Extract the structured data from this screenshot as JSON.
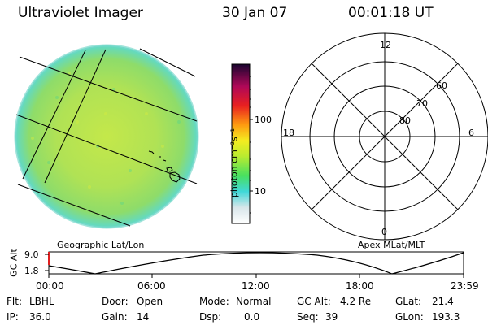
{
  "header": {
    "instrument": "Ultraviolet Imager",
    "date": "30 Jan 07",
    "time": "00:01:18 UT"
  },
  "colorbar": {
    "unit_label": "photon cm⁻²s⁻¹",
    "ticks": [
      "100",
      "10"
    ]
  },
  "geographic_label": "Geographic Lat/Lon",
  "polar": {
    "label": "Apex MLat/MLT",
    "mlt_labels": {
      "top": "12",
      "left": "18",
      "right": "6",
      "bottom": "0"
    },
    "lat_labels": [
      "60",
      "70",
      "80"
    ]
  },
  "altitude_plot": {
    "ylabel": "GC Alt",
    "yticks": [
      "9.0",
      "1.8"
    ],
    "xticks": [
      "00:00",
      "06:00",
      "12:00",
      "18:00",
      "23:59"
    ]
  },
  "status": {
    "flt_label": "Flt:",
    "flt_value": "LBHL",
    "ip_label": "IP:",
    "ip_value": "36.0",
    "door_label": "Door:",
    "door_value": "Open",
    "gain_label": "Gain:",
    "gain_value": "14",
    "mode_label": "Mode:",
    "mode_value": "Normal",
    "dsp_label": "Dsp:",
    "dsp_value": "0.0",
    "gcalt_label": "GC Alt:",
    "gcalt_value": "4.2 Re",
    "seq_label": "Seq:",
    "seq_value": "39",
    "glat_label": "GLat:",
    "glat_value": "21.4",
    "glon_label": "GLon:",
    "glon_value": "193.3"
  },
  "colors": {
    "disk_main": "#a8e05a",
    "disk_edge": "#5fd9c8",
    "altitude_marker": "#e02020"
  }
}
